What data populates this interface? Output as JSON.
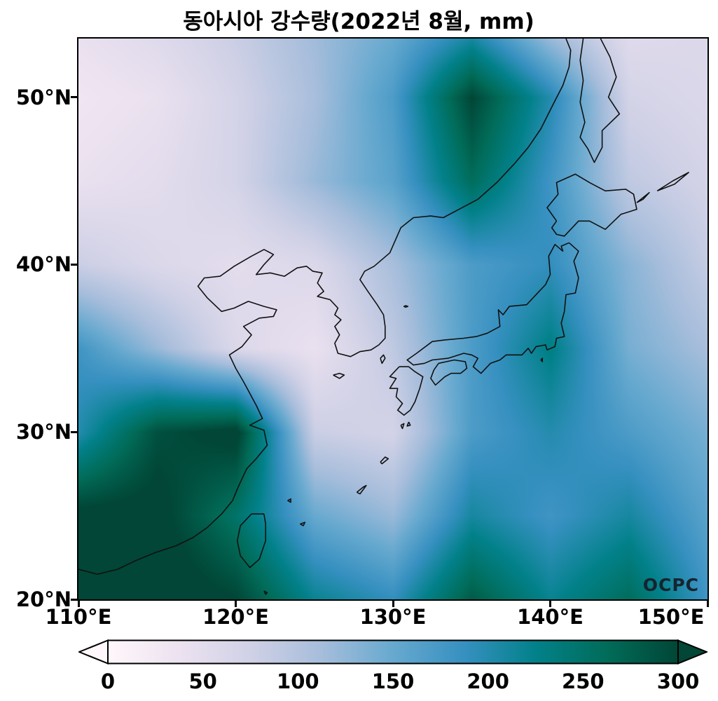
{
  "title": "동아시아 강수량(2022년 8월, mm)",
  "watermark": "OCPC",
  "axes": {
    "x_ticks": [
      {
        "value": 110,
        "label": "110°E"
      },
      {
        "value": 120,
        "label": "120°E"
      },
      {
        "value": 130,
        "label": "130°E"
      },
      {
        "value": 140,
        "label": "140°E"
      },
      {
        "value": 150,
        "label": "150°E"
      }
    ],
    "y_ticks": [
      {
        "value": 50,
        "label": "50°N"
      },
      {
        "value": 40,
        "label": "40°N"
      },
      {
        "value": 30,
        "label": "30°N"
      },
      {
        "value": 20,
        "label": "20°N"
      }
    ]
  },
  "colorbar": {
    "min": 0,
    "max": 300,
    "extend": "both",
    "ticks": [
      {
        "value": 0,
        "label": "0"
      },
      {
        "value": 50,
        "label": "50"
      },
      {
        "value": 100,
        "label": "100"
      },
      {
        "value": 150,
        "label": "150"
      },
      {
        "value": 200,
        "label": "200"
      },
      {
        "value": 250,
        "label": "250"
      },
      {
        "value": 300,
        "label": "300"
      }
    ],
    "colormap_name": "PuBuGn",
    "colormap": [
      [
        0.0,
        "#fff7fb"
      ],
      [
        0.125,
        "#ece2f0"
      ],
      [
        0.25,
        "#d0d1e6"
      ],
      [
        0.375,
        "#a6bddb"
      ],
      [
        0.5,
        "#67a9cf"
      ],
      [
        0.625,
        "#3690c0"
      ],
      [
        0.75,
        "#02818a"
      ],
      [
        0.875,
        "#016c59"
      ],
      [
        1.0,
        "#014636"
      ]
    ]
  },
  "chart_data": {
    "type": "heatmap",
    "subtype": "filled_contour_map",
    "title": "동아시아 강수량(2022년 8월, mm)",
    "units": "mm",
    "period": "2022년 8월",
    "extent": {
      "lon": [
        110,
        150
      ],
      "lat": [
        20,
        53.5
      ]
    },
    "grid_lons": [
      110,
      115,
      120,
      125,
      130,
      135,
      140,
      145,
      150
    ],
    "grid_lats": [
      53.5,
      50,
      45,
      40,
      35,
      30,
      25,
      20
    ],
    "values": [
      [
        40,
        55,
        80,
        115,
        150,
        210,
        120,
        55,
        60
      ],
      [
        30,
        40,
        70,
        110,
        170,
        300,
        200,
        70,
        60
      ],
      [
        40,
        50,
        70,
        120,
        160,
        260,
        180,
        90,
        70
      ],
      [
        80,
        60,
        50,
        60,
        110,
        170,
        190,
        130,
        85
      ],
      [
        180,
        120,
        60,
        40,
        90,
        170,
        230,
        140,
        110
      ],
      [
        200,
        290,
        310,
        80,
        70,
        170,
        200,
        170,
        140
      ],
      [
        310,
        310,
        250,
        150,
        120,
        210,
        180,
        210,
        160
      ],
      [
        320,
        320,
        300,
        220,
        190,
        280,
        220,
        260,
        180
      ]
    ],
    "value_range_shown": [
      0,
      300
    ],
    "legend_position": "bottom",
    "grid": false,
    "coastlines": [
      [
        [
          110,
          21.8
        ],
        [
          111.2,
          21.5
        ],
        [
          112.5,
          21.8
        ],
        [
          113.6,
          22.3
        ],
        [
          114.9,
          22.8
        ],
        [
          116.2,
          23.2
        ],
        [
          117.3,
          23.7
        ],
        [
          118.2,
          24.3
        ],
        [
          119.1,
          25.1
        ],
        [
          119.8,
          25.9
        ],
        [
          120.2,
          26.8
        ],
        [
          120.7,
          27.8
        ],
        [
          121.3,
          28.4
        ],
        [
          122,
          29.2
        ],
        [
          121.8,
          30.1
        ],
        [
          120.9,
          30.4
        ],
        [
          121.7,
          30.8
        ],
        [
          121.3,
          31.6
        ],
        [
          120.9,
          32.3
        ],
        [
          120.5,
          33
        ],
        [
          120,
          33.8
        ],
        [
          119.6,
          34.6
        ],
        [
          120.4,
          35.1
        ],
        [
          121,
          35.8
        ],
        [
          120.5,
          36.3
        ],
        [
          121.5,
          36.8
        ],
        [
          122.4,
          36.9
        ],
        [
          122.6,
          37.3
        ],
        [
          121.8,
          37.5
        ],
        [
          120.8,
          37.8
        ],
        [
          119.9,
          37.4
        ],
        [
          119.1,
          37.2
        ],
        [
          118.2,
          38
        ],
        [
          117.6,
          38.7
        ],
        [
          118,
          39.2
        ],
        [
          119,
          39.3
        ],
        [
          119.9,
          39.9
        ],
        [
          121,
          40.5
        ],
        [
          121.8,
          40.9
        ],
        [
          122.4,
          40.6
        ],
        [
          121.8,
          40
        ],
        [
          121.3,
          39.4
        ],
        [
          122.2,
          39.5
        ],
        [
          123.1,
          39.3
        ],
        [
          123.9,
          39.8
        ],
        [
          124.5,
          39.9
        ],
        [
          124.9,
          39.6
        ],
        [
          125.5,
          39.5
        ],
        [
          125.2,
          38.9
        ],
        [
          125.6,
          38.4
        ],
        [
          125.2,
          38.1
        ],
        [
          126,
          37.9
        ],
        [
          126.5,
          37.4
        ],
        [
          126.3,
          37
        ],
        [
          126.7,
          36.7
        ],
        [
          126.3,
          36.3
        ],
        [
          126.6,
          35.8
        ],
        [
          126.3,
          35.3
        ],
        [
          126.5,
          34.7
        ],
        [
          127.3,
          34.5
        ],
        [
          127.9,
          34.8
        ],
        [
          128.6,
          34.9
        ],
        [
          129.1,
          35.2
        ],
        [
          129.5,
          35.6
        ],
        [
          129.5,
          36.3
        ],
        [
          129.4,
          37
        ],
        [
          129,
          37.6
        ],
        [
          128.4,
          38.4
        ],
        [
          127.9,
          39.1
        ],
        [
          128.2,
          39.6
        ],
        [
          128.8,
          39.9
        ],
        [
          129.8,
          40.7
        ],
        [
          130.5,
          42.2
        ],
        [
          131.3,
          42.8
        ],
        [
          132.4,
          42.9
        ],
        [
          133.2,
          42.8
        ],
        [
          134.2,
          43.3
        ],
        [
          135.4,
          43.9
        ],
        [
          136.6,
          44.9
        ],
        [
          137.7,
          46
        ],
        [
          138.6,
          47
        ],
        [
          139.4,
          48.1
        ],
        [
          140.2,
          49.6
        ],
        [
          140.8,
          50.7
        ],
        [
          141.2,
          51.8
        ],
        [
          141.3,
          52.8
        ],
        [
          141,
          53.5
        ]
      ],
      [
        [
          142.1,
          53.5
        ],
        [
          141.9,
          52.2
        ],
        [
          142.1,
          51
        ],
        [
          141.9,
          49.7
        ],
        [
          142.2,
          48.5
        ],
        [
          141.9,
          47.6
        ],
        [
          142.4,
          46.9
        ],
        [
          142.8,
          46.1
        ],
        [
          143.3,
          47
        ],
        [
          143.3,
          48
        ],
        [
          144.4,
          49
        ],
        [
          143.7,
          50
        ],
        [
          144.2,
          51.2
        ],
        [
          143.8,
          52.4
        ],
        [
          143.2,
          53.5
        ]
      ],
      [
        [
          140.4,
          42.6
        ],
        [
          139.8,
          43.4
        ],
        [
          140.5,
          44.2
        ],
        [
          140.4,
          44.9
        ],
        [
          141.6,
          45.4
        ],
        [
          142.5,
          44.9
        ],
        [
          143.5,
          44.4
        ],
        [
          144.8,
          44.5
        ],
        [
          145.3,
          44.2
        ],
        [
          145.5,
          43.3
        ],
        [
          144.5,
          43
        ],
        [
          143.5,
          42.1
        ],
        [
          142.5,
          42.6
        ],
        [
          141.8,
          42.6
        ],
        [
          140.9,
          41.7
        ],
        [
          140.4,
          41.8
        ],
        [
          140.1,
          42.2
        ],
        [
          140.4,
          42.6
        ]
      ],
      [
        [
          141.2,
          41.3
        ],
        [
          140.7,
          41.1
        ],
        [
          140.8,
          40.8
        ],
        [
          140.3,
          41.2
        ],
        [
          139.9,
          40.5
        ],
        [
          140,
          39.4
        ],
        [
          139.7,
          38.8
        ],
        [
          138.9,
          38
        ],
        [
          138.5,
          37.6
        ],
        [
          137.4,
          37.5
        ],
        [
          137,
          37
        ],
        [
          136.7,
          37.3
        ],
        [
          136.8,
          36.3
        ],
        [
          136,
          35.9
        ],
        [
          135.3,
          35.7
        ],
        [
          134.5,
          35.6
        ],
        [
          133.3,
          35.5
        ],
        [
          132.5,
          35.4
        ],
        [
          131.5,
          34.7
        ],
        [
          130.9,
          34.3
        ],
        [
          131.3,
          34
        ],
        [
          132,
          34.1
        ],
        [
          132.5,
          34.3
        ],
        [
          133.5,
          34.4
        ],
        [
          134.5,
          34.7
        ],
        [
          135,
          34.6
        ],
        [
          135.4,
          34.4
        ],
        [
          135.1,
          33.9
        ],
        [
          135.6,
          33.5
        ],
        [
          136.2,
          34.1
        ],
        [
          136.8,
          34.3
        ],
        [
          137.2,
          34.6
        ],
        [
          138.2,
          34.6
        ],
        [
          138.6,
          35
        ],
        [
          138.8,
          34.7
        ],
        [
          139.1,
          35.1
        ],
        [
          139.7,
          35.2
        ],
        [
          139.8,
          34.9
        ],
        [
          140.3,
          35.1
        ],
        [
          140.4,
          35.6
        ],
        [
          140.9,
          35.7
        ],
        [
          140.7,
          36.5
        ],
        [
          140.9,
          37.2
        ],
        [
          141,
          38.2
        ],
        [
          141.6,
          38.3
        ],
        [
          141.8,
          39.2
        ],
        [
          141.5,
          40.2
        ],
        [
          141.8,
          40.8
        ],
        [
          141.2,
          41.3
        ]
      ],
      [
        [
          130.4,
          33.9
        ],
        [
          131,
          33.9
        ],
        [
          131.4,
          33.6
        ],
        [
          131.9,
          33.3
        ],
        [
          131.7,
          32.6
        ],
        [
          131.4,
          31.8
        ],
        [
          131.1,
          31.3
        ],
        [
          130.7,
          31
        ],
        [
          130.3,
          31.3
        ],
        [
          130.6,
          31.7
        ],
        [
          130.2,
          32.1
        ],
        [
          130.3,
          32.6
        ],
        [
          129.8,
          32.6
        ],
        [
          130.2,
          33.2
        ],
        [
          129.8,
          33.3
        ],
        [
          130.1,
          33.6
        ],
        [
          130.4,
          33.9
        ]
      ],
      [
        [
          132.9,
          34.1
        ],
        [
          133.9,
          34.3
        ],
        [
          134.6,
          34.2
        ],
        [
          134.7,
          33.8
        ],
        [
          134.3,
          33.5
        ],
        [
          133.7,
          33.5
        ],
        [
          133.3,
          33.3
        ],
        [
          132.7,
          32.8
        ],
        [
          132.4,
          33.2
        ],
        [
          132.6,
          33.7
        ],
        [
          132.9,
          34.1
        ]
      ],
      [
        [
          121.8,
          25.1
        ],
        [
          121,
          25.1
        ],
        [
          120.3,
          24.4
        ],
        [
          120.1,
          23.5
        ],
        [
          120.3,
          22.6
        ],
        [
          120.9,
          21.9
        ],
        [
          121.5,
          22.4
        ],
        [
          121.9,
          23.5
        ],
        [
          121.9,
          24.5
        ],
        [
          121.8,
          25.1
        ]
      ],
      [
        [
          126.2,
          33.4
        ],
        [
          126.6,
          33.5
        ],
        [
          126.9,
          33.4
        ],
        [
          126.6,
          33.2
        ],
        [
          126.2,
          33.4
        ]
      ],
      [
        [
          129.2,
          34.4
        ],
        [
          129.4,
          34.6
        ],
        [
          129.5,
          34.4
        ],
        [
          129.3,
          34.1
        ],
        [
          129.2,
          34.4
        ]
      ],
      [
        [
          130.8,
          37.55
        ],
        [
          130.95,
          37.5
        ],
        [
          130.8,
          37.45
        ],
        [
          130.7,
          37.5
        ],
        [
          130.8,
          37.55
        ]
      ],
      [
        [
          127.7,
          26.4
        ],
        [
          128.1,
          26.7
        ],
        [
          128.3,
          26.8
        ],
        [
          127.9,
          26.3
        ],
        [
          127.7,
          26.4
        ]
      ],
      [
        [
          129.2,
          28.2
        ],
        [
          129.5,
          28.5
        ],
        [
          129.7,
          28.4
        ],
        [
          129.3,
          28.1
        ],
        [
          129.2,
          28.2
        ]
      ],
      [
        [
          130.5,
          30.4
        ],
        [
          130.7,
          30.5
        ],
        [
          130.6,
          30.2
        ],
        [
          130.5,
          30.4
        ]
      ],
      [
        [
          131,
          30.6
        ],
        [
          131.1,
          30.4
        ],
        [
          130.9,
          30.35
        ],
        [
          131,
          30.6
        ]
      ],
      [
        [
          139.4,
          34.3
        ],
        [
          139.5,
          34.4
        ],
        [
          139.5,
          34.2
        ],
        [
          139.4,
          34.3
        ]
      ],
      [
        [
          123.3,
          25.9
        ],
        [
          123.5,
          26
        ],
        [
          123.5,
          25.8
        ],
        [
          123.3,
          25.9
        ]
      ],
      [
        [
          124.1,
          24.5
        ],
        [
          124.4,
          24.6
        ],
        [
          124.3,
          24.4
        ],
        [
          124.1,
          24.5
        ]
      ],
      [
        [
          121.8,
          20.5
        ],
        [
          122,
          20.4
        ],
        [
          121.9,
          20.3
        ],
        [
          121.8,
          20.5
        ]
      ],
      [
        [
          145.5,
          43.7
        ],
        [
          146.3,
          44.3
        ],
        [
          145.9,
          43.9
        ],
        [
          145.5,
          43.7
        ]
      ],
      [
        [
          146.8,
          44.4
        ],
        [
          147.8,
          45
        ],
        [
          148.8,
          45.5
        ],
        [
          147.9,
          44.8
        ],
        [
          146.8,
          44.4
        ]
      ]
    ]
  }
}
